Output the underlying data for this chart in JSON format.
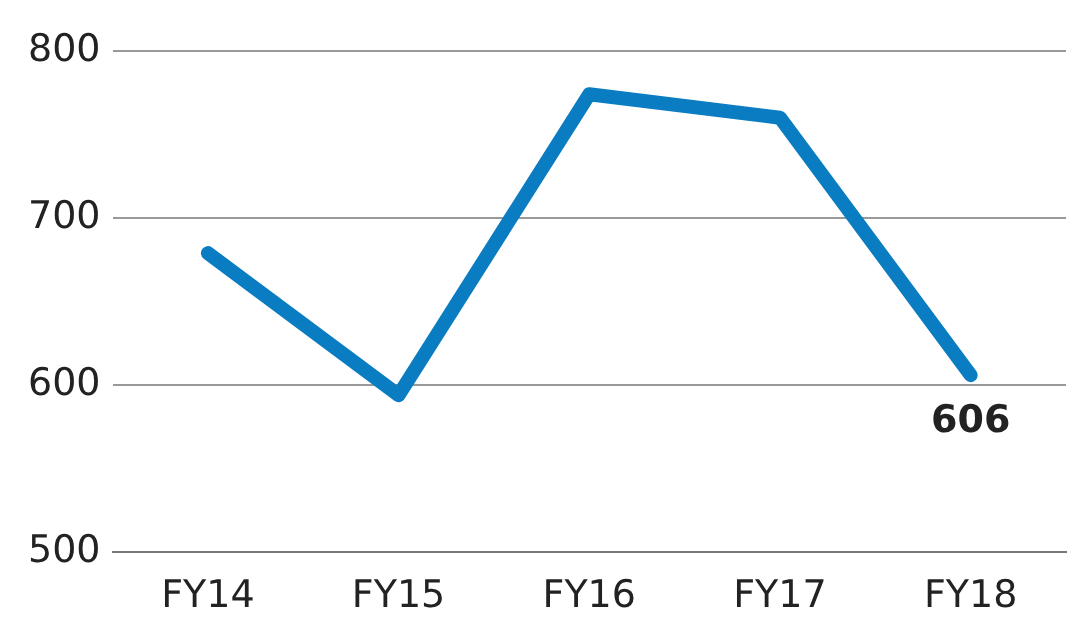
{
  "chart_data": {
    "type": "line",
    "categories": [
      "FY14",
      "FY15",
      "FY16",
      "FY17",
      "FY18"
    ],
    "series": [
      {
        "color": "#0a7cc1",
        "values": [
          679,
          594,
          774,
          760,
          606
        ],
        "value_labels": [
          null,
          null,
          null,
          null,
          "606"
        ]
      }
    ],
    "ylim": [
      500,
      800
    ],
    "yticks": [
      500,
      600,
      700,
      800
    ],
    "grid": "y",
    "legend": false,
    "marker": "none",
    "line_style": "solid"
  }
}
